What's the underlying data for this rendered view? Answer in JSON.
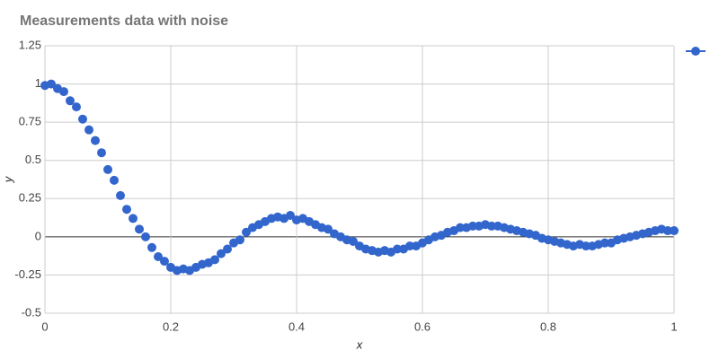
{
  "chart_data": {
    "type": "scatter",
    "title": "Measurements data with noise",
    "x_label": "x",
    "y_label": "y",
    "x": [
      0,
      0.01,
      0.02,
      0.03,
      0.04,
      0.05,
      0.06,
      0.07,
      0.08,
      0.09,
      0.1,
      0.11,
      0.12,
      0.13,
      0.14,
      0.15,
      0.16,
      0.17,
      0.18,
      0.19,
      0.2,
      0.21,
      0.22,
      0.23,
      0.24,
      0.25,
      0.26,
      0.27,
      0.28,
      0.29,
      0.3,
      0.31,
      0.32,
      0.33,
      0.34,
      0.35,
      0.36,
      0.37,
      0.38,
      0.39,
      0.4,
      0.41,
      0.42,
      0.43,
      0.44,
      0.45,
      0.46,
      0.47,
      0.48,
      0.49,
      0.5,
      0.51,
      0.52,
      0.53,
      0.54,
      0.55,
      0.56,
      0.57,
      0.58,
      0.59,
      0.6,
      0.61,
      0.62,
      0.63,
      0.64,
      0.65,
      0.66,
      0.67,
      0.68,
      0.69,
      0.7,
      0.71,
      0.72,
      0.73,
      0.74,
      0.75,
      0.76,
      0.77,
      0.78,
      0.79,
      0.8,
      0.81,
      0.82,
      0.83,
      0.84,
      0.85,
      0.86,
      0.87,
      0.88,
      0.89,
      0.9,
      0.91,
      0.92,
      0.93,
      0.94,
      0.95,
      0.96,
      0.97,
      0.98,
      0.99,
      1
    ],
    "series": [
      {
        "color": "#3366cc",
        "values": [
          0.99,
          1.0,
          0.97,
          0.95,
          0.89,
          0.85,
          0.77,
          0.7,
          0.63,
          0.55,
          0.44,
          0.37,
          0.27,
          0.18,
          0.12,
          0.05,
          0.0,
          -0.07,
          -0.13,
          -0.16,
          -0.2,
          -0.22,
          -0.21,
          -0.22,
          -0.2,
          -0.18,
          -0.17,
          -0.15,
          -0.11,
          -0.08,
          -0.04,
          -0.02,
          0.03,
          0.06,
          0.08,
          0.1,
          0.12,
          0.13,
          0.12,
          0.14,
          0.11,
          0.12,
          0.1,
          0.08,
          0.06,
          0.05,
          0.02,
          0.0,
          -0.02,
          -0.03,
          -0.06,
          -0.08,
          -0.09,
          -0.1,
          -0.09,
          -0.1,
          -0.08,
          -0.08,
          -0.06,
          -0.06,
          -0.04,
          -0.02,
          0.0,
          0.01,
          0.03,
          0.04,
          0.06,
          0.06,
          0.07,
          0.07,
          0.08,
          0.07,
          0.07,
          0.06,
          0.05,
          0.04,
          0.03,
          0.02,
          0.01,
          -0.01,
          -0.02,
          -0.03,
          -0.04,
          -0.05,
          -0.06,
          -0.05,
          -0.06,
          -0.06,
          -0.05,
          -0.04,
          -0.04,
          -0.02,
          -0.01,
          0.0,
          0.01,
          0.02,
          0.03,
          0.04,
          0.05,
          0.04,
          0.04
        ]
      }
    ],
    "xlim": [
      0,
      1
    ],
    "xticks": [
      0,
      0.2,
      0.4,
      0.6,
      0.8,
      1
    ],
    "ylim": [
      -0.5,
      1.25
    ],
    "yticks": [
      -0.5,
      -0.25,
      0,
      0.25,
      0.5,
      0.75,
      1,
      1.25
    ],
    "grid": true
  }
}
